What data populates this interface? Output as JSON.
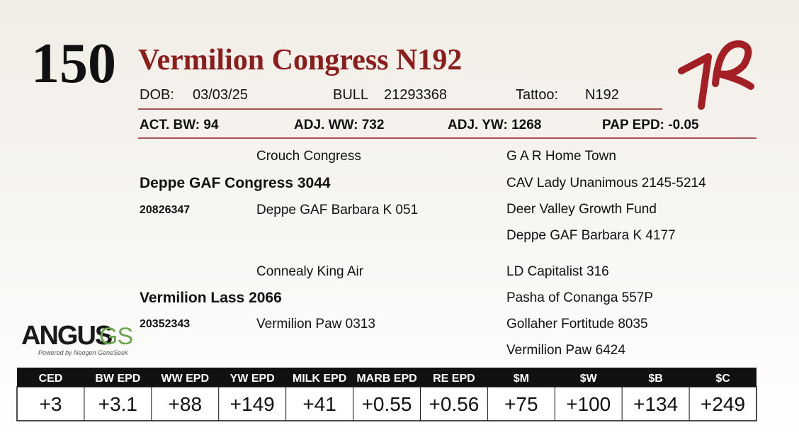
{
  "lot": "150",
  "title": "Vermilion Congress N192",
  "info": [
    {
      "label": "DOB:",
      "value": "03/03/25"
    },
    {
      "label": "BULL",
      "value": "21293368"
    },
    {
      "label": "Tattoo:",
      "value": "N192"
    }
  ],
  "performance": [
    "ACT. BW: 94",
    "ADJ. WW: 732",
    "ADJ. YW: 1268",
    "PAP EPD: -0.05"
  ],
  "pedigree": {
    "sire": {
      "name": "Deppe GAF Congress 3044",
      "reg": "20826347",
      "sire": "Crouch Congress",
      "dam": "Deppe GAF Barbara K 051",
      "sire_sire": "G A R Home Town",
      "sire_dam": "CAV Lady Unanimous 2145-5214",
      "dam_sire": "Deer Valley Growth Fund",
      "dam_dam": "Deppe GAF Barbara K 4177"
    },
    "dam": {
      "name": "Vermilion Lass 2066",
      "reg": "20352343",
      "sire": "Connealy King Air",
      "dam": "Vermilion Paw 0313",
      "sire_sire": "LD Capitalist 316",
      "sire_dam": "Pasha of Conanga 557P",
      "dam_sire": "Gollaher Fortitude 8035",
      "dam_dam": "Vermilion Paw 6424"
    }
  },
  "logo": {
    "brand": "ANGUS",
    "suffix": "GS",
    "tagline": "Powered by Neogen GeneSeek"
  },
  "epd_table": {
    "headers": [
      "CED",
      "BW EPD",
      "WW EPD",
      "YW EPD",
      "MILK EPD",
      "MARB EPD",
      "RE EPD",
      "$M",
      "$W",
      "$B",
      "$C"
    ],
    "values": [
      "+3",
      "+3.1",
      "+88",
      "+149",
      "+41",
      "+0.55",
      "+0.56",
      "+75",
      "+100",
      "+134",
      "+249"
    ]
  }
}
